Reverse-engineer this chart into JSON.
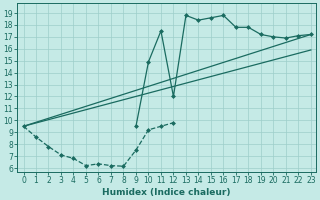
{
  "xlabel": "Humidex (Indice chaleur)",
  "bg_color": "#c5eae6",
  "grid_color": "#9ececa",
  "line_color": "#1a6b60",
  "xlim_min": -0.5,
  "xlim_max": 23.4,
  "ylim_min": 5.7,
  "ylim_max": 19.8,
  "curve_dip_x": [
    0,
    1,
    2,
    3,
    4,
    5,
    6,
    7,
    8,
    9,
    10,
    11,
    12
  ],
  "curve_dip_y": [
    9.5,
    8.6,
    7.8,
    7.1,
    6.8,
    6.2,
    6.35,
    6.2,
    6.15,
    7.5,
    9.2,
    9.5,
    9.8
  ],
  "curve_spike_x": [
    9,
    10,
    11,
    12,
    13,
    14,
    15,
    16,
    17,
    18,
    19,
    20,
    21,
    22,
    23
  ],
  "curve_spike_y": [
    9.5,
    14.9,
    17.5,
    12.0,
    18.8,
    18.4,
    18.6,
    18.8,
    17.8,
    17.8,
    17.2,
    17.0,
    16.9,
    17.1,
    17.2
  ],
  "line1_x": [
    0,
    23
  ],
  "line1_y": [
    9.5,
    17.2
  ],
  "line2_x": [
    0,
    23
  ],
  "line2_y": [
    9.5,
    15.9
  ],
  "yticks": [
    6,
    7,
    8,
    9,
    10,
    11,
    12,
    13,
    14,
    15,
    16,
    17,
    18,
    19
  ],
  "xticks": [
    0,
    1,
    2,
    3,
    4,
    5,
    6,
    7,
    8,
    9,
    10,
    11,
    12,
    13,
    14,
    15,
    16,
    17,
    18,
    19,
    20,
    21,
    22,
    23
  ]
}
